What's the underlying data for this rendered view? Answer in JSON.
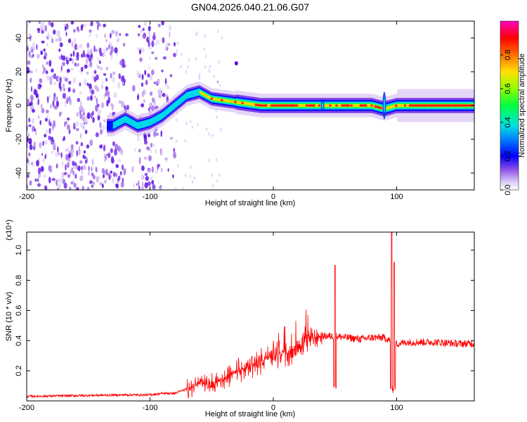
{
  "title": "GN04.2026.040.21.06.G07",
  "chart_data": [
    {
      "type": "heatmap",
      "xlabel": "Height of straight line (km)",
      "ylabel": "Frequency (Hz)",
      "xlim": [
        -200,
        163
      ],
      "ylim": [
        -50,
        50
      ],
      "x_ticks": [
        -200,
        -100,
        0,
        100
      ],
      "y_ticks": [
        -40,
        -20,
        0,
        20,
        40
      ],
      "colorbar": {
        "label": "Normalized spectral amplitude",
        "range": [
          0,
          1
        ],
        "ticks": [
          0.0,
          0.2,
          0.4,
          0.6,
          0.8
        ],
        "colors": [
          "#ffffff",
          "#c8a8f0",
          "#7a28e8",
          "#0000ff",
          "#00e0e0",
          "#00ff00",
          "#c8ff00",
          "#ffd000",
          "#ff5000",
          "#ff0000",
          "#ff00c0"
        ]
      },
      "ridge": {
        "x": [
          -130,
          -120,
          -110,
          -100,
          -90,
          -80,
          -70,
          -60,
          -50,
          -40,
          -30,
          -20,
          -10,
          0,
          20,
          40,
          60,
          80,
          90,
          100,
          120,
          140,
          163
        ],
        "y": [
          -12,
          -8,
          -12,
          -10,
          -6,
          0,
          6,
          8,
          4,
          3,
          2,
          1,
          0,
          0,
          0,
          0,
          0,
          0,
          -2,
          0,
          0,
          0,
          0
        ]
      }
    },
    {
      "type": "line",
      "xlabel": "Height of straight line (km)",
      "ylabel": "SNR (10 * v/v)",
      "y_multiplier": "(x10⁴)",
      "xlim": [
        -200,
        163
      ],
      "ylim": [
        0,
        1.12
      ],
      "x_ticks": [
        -200,
        -100,
        0,
        100
      ],
      "y_ticks": [
        0.2,
        0.4,
        0.6,
        0.8,
        1.0
      ],
      "color": "#ff0000",
      "baseline": {
        "x": [
          -200,
          -120,
          -100,
          -90,
          -80,
          -70,
          -60,
          -50,
          -40,
          -30,
          -20,
          -10,
          0,
          10,
          20,
          30,
          40,
          50,
          60,
          70,
          80,
          90,
          100,
          110,
          130,
          150,
          163
        ],
        "y": [
          0.03,
          0.04,
          0.04,
          0.05,
          0.05,
          0.08,
          0.12,
          0.1,
          0.15,
          0.2,
          0.22,
          0.27,
          0.3,
          0.32,
          0.37,
          0.41,
          0.43,
          0.43,
          0.42,
          0.41,
          0.42,
          0.42,
          0.38,
          0.39,
          0.39,
          0.38,
          0.38
        ]
      },
      "spikes": [
        {
          "x": 50,
          "y": 0.9,
          "dip": 0.08
        },
        {
          "x": 96,
          "y": 1.12,
          "dip": 0.05
        },
        {
          "x": 98,
          "y": 0.92,
          "dip": 0.07
        }
      ]
    }
  ]
}
